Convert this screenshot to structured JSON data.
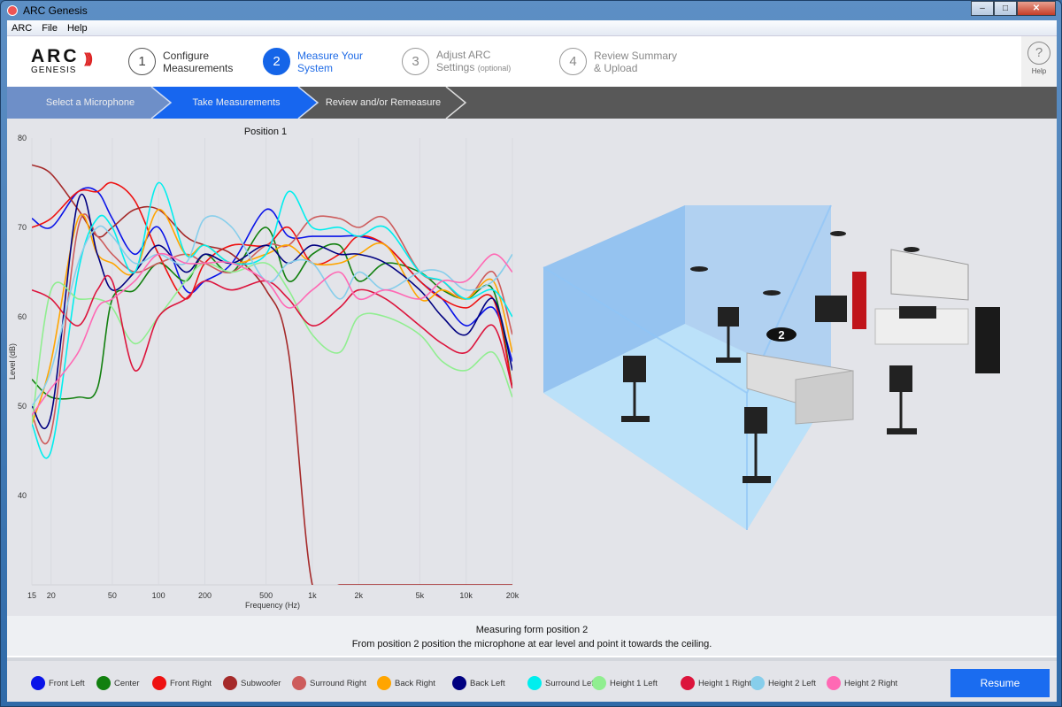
{
  "window": {
    "title": "ARC Genesis",
    "minimize": "–",
    "maximize": "□",
    "close": "✕"
  },
  "menu": [
    "ARC",
    "File",
    "Help"
  ],
  "logo": {
    "line1": "ARC",
    "line2": "GENESIS"
  },
  "steps": [
    {
      "num": "1",
      "line1": "Configure",
      "line2": "Measurements",
      "state": "done"
    },
    {
      "num": "2",
      "line1": "Measure Your",
      "line2": "System",
      "state": "active"
    },
    {
      "num": "3",
      "line1": "Adjust ARC",
      "line2": "Settings",
      "note": "(optional)",
      "state": "pending"
    },
    {
      "num": "4",
      "line1": "Review Summary",
      "line2": "& Upload",
      "state": "pending"
    }
  ],
  "help": {
    "icon": "?",
    "label": "Help"
  },
  "breadcrumbs": [
    {
      "label": "Select a Microphone",
      "state": "done"
    },
    {
      "label": "Take Measurements",
      "state": "active"
    },
    {
      "label": "Review and/or Remeasure",
      "state": "pending"
    }
  ],
  "instructions": {
    "title": "Measuring form position 2",
    "body": "From position 2 position the microphone at ear level and point it towards the ceiling."
  },
  "room": {
    "position_marker": "2"
  },
  "resume_label": "Resume",
  "chart_data": {
    "type": "line",
    "title": "Position 1",
    "xlabel": "Frequency (Hz)",
    "ylabel": "Level (dB)",
    "xscale": "log",
    "xlim": [
      15,
      20000
    ],
    "ylim": [
      30,
      80
    ],
    "xticks": [
      15,
      20,
      50,
      100,
      200,
      500,
      1000,
      2000,
      5000,
      10000,
      20000
    ],
    "xtick_labels": [
      "15",
      "20",
      "50",
      "100",
      "200",
      "500",
      "1k",
      "2k",
      "5k",
      "10k",
      "20k"
    ],
    "yticks": [
      40,
      50,
      60,
      70,
      80
    ],
    "ytick_labels": [
      "40",
      "50",
      "60",
      "70",
      "80"
    ],
    "grid": true,
    "legend": "bottom",
    "x": [
      15,
      20,
      30,
      40,
      50,
      70,
      100,
      150,
      200,
      300,
      500,
      700,
      1000,
      1500,
      2000,
      3000,
      5000,
      7000,
      10000,
      15000,
      20000
    ],
    "series": [
      {
        "name": "Front Left",
        "color": "#0a14e8",
        "values": [
          71,
          70,
          74,
          74,
          71,
          67,
          70,
          63,
          64,
          66,
          72,
          69,
          69,
          69,
          69,
          68,
          64,
          62,
          59,
          61,
          55
        ]
      },
      {
        "name": "Center",
        "color": "#12800f",
        "values": [
          53,
          51,
          51,
          52,
          62,
          63,
          66,
          64,
          67,
          65,
          70,
          64,
          67,
          68,
          64,
          66,
          65,
          63,
          62,
          63,
          52
        ]
      },
      {
        "name": "Front Right",
        "color": "#ee1111",
        "values": [
          70,
          71,
          74,
          74,
          75,
          73,
          67,
          62,
          66,
          68,
          68,
          70,
          66,
          67,
          69,
          68,
          64,
          62,
          61,
          62,
          52
        ]
      },
      {
        "name": "Subwoofer",
        "color": "#a52a2a",
        "values": [
          77,
          76,
          72,
          69,
          70,
          72,
          72,
          69,
          68,
          67,
          63,
          56,
          30,
          30,
          30,
          30,
          30,
          30,
          30,
          30,
          30
        ]
      },
      {
        "name": "Surround Right",
        "color": "#cd5c5c",
        "values": [
          49,
          47,
          70,
          69,
          67,
          65,
          66,
          67,
          66,
          65,
          68,
          68,
          71,
          71,
          70,
          71,
          65,
          64,
          62,
          65,
          58
        ]
      },
      {
        "name": "Back Right",
        "color": "#ffa500",
        "values": [
          48,
          55,
          71,
          67,
          66,
          65,
          72,
          67,
          68,
          66,
          67,
          68,
          66,
          66,
          67,
          68,
          62,
          63,
          62,
          64,
          56
        ]
      },
      {
        "name": "Back Left",
        "color": "#000080",
        "values": [
          50,
          49,
          73,
          67,
          63,
          65,
          68,
          65,
          67,
          66,
          68,
          66,
          68,
          67,
          67,
          66,
          63,
          60,
          58,
          62,
          54
        ]
      },
      {
        "name": "Surround Left",
        "color": "#00eeee",
        "values": [
          48,
          45,
          65,
          71,
          70,
          65,
          75,
          67,
          68,
          66,
          67,
          74,
          70,
          70,
          69,
          70,
          65,
          64,
          62,
          63,
          60
        ]
      },
      {
        "name": "Height 1 Left",
        "color": "#90ee90",
        "values": [
          48,
          63,
          62,
          62,
          61,
          57,
          60,
          64,
          66,
          65,
          66,
          63,
          58,
          56,
          60,
          60,
          58,
          55,
          54,
          56,
          51
        ]
      },
      {
        "name": "Height 1 Right",
        "color": "#dc143c",
        "values": [
          63,
          62,
          59,
          63,
          64,
          54,
          60,
          62,
          64,
          63,
          64,
          62,
          59,
          61,
          63,
          62,
          59,
          57,
          56,
          59,
          52
        ]
      },
      {
        "name": "Height 2 Left",
        "color": "#87ceeb",
        "values": [
          50,
          54,
          66,
          70,
          69,
          66,
          67,
          66,
          71,
          70,
          64,
          66,
          66,
          62,
          65,
          63,
          65,
          65,
          63,
          64,
          67
        ]
      },
      {
        "name": "Height 2 Right",
        "color": "#ff69b4",
        "values": [
          49,
          52,
          56,
          61,
          62,
          64,
          67,
          66,
          66,
          66,
          64,
          61,
          63,
          65,
          62,
          63,
          62,
          64,
          64,
          67,
          65
        ]
      }
    ]
  }
}
